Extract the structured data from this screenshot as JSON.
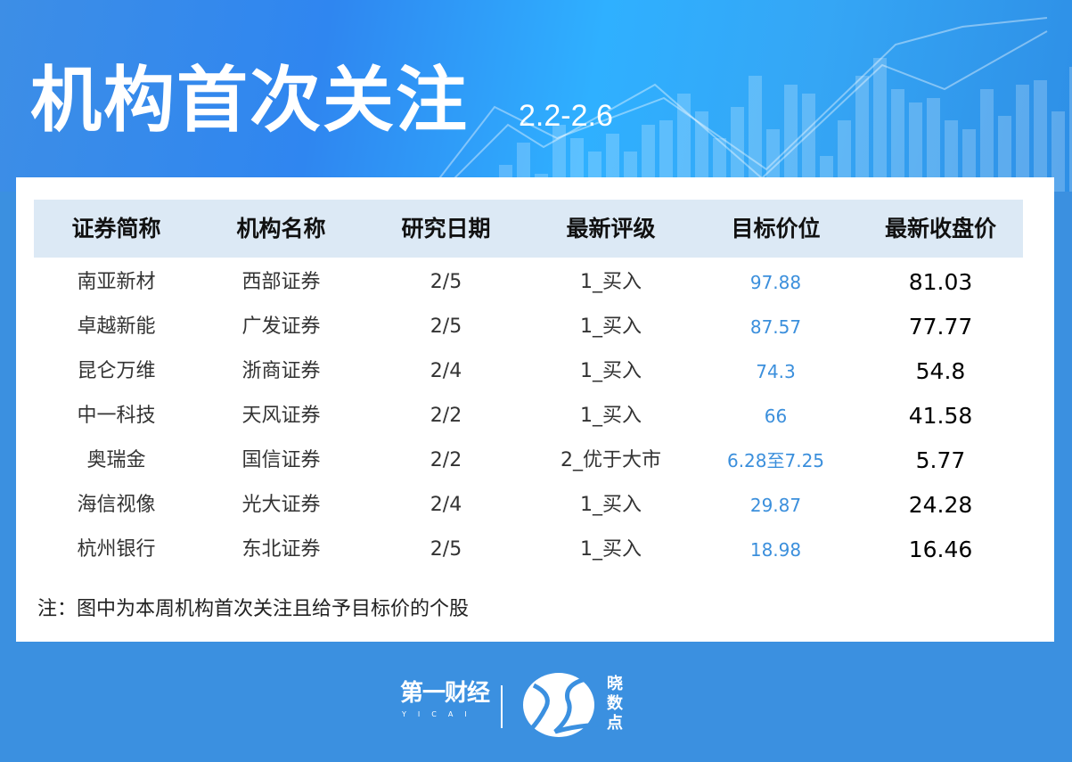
{
  "header": {
    "title": "机构首次关注",
    "date_range": "2.2-2.6"
  },
  "table": {
    "columns": [
      "证券简称",
      "机构名称",
      "研究日期",
      "最新评级",
      "目标价位",
      "最新收盘价"
    ],
    "rows": [
      [
        "南亚新材",
        "西部证券",
        "2/5",
        "1_买入",
        "97.88",
        "81.03"
      ],
      [
        "卓越新能",
        "广发证券",
        "2/5",
        "1_买入",
        "87.57",
        "77.77"
      ],
      [
        "昆仑万维",
        "浙商证券",
        "2/4",
        "1_买入",
        "74.3",
        "54.8"
      ],
      [
        "中一科技",
        "天风证券",
        "2/2",
        "1_买入",
        "66",
        "41.58"
      ],
      [
        "奥瑞金",
        "国信证券",
        "2/2",
        "2_优于大市",
        "6.28至7.25",
        "5.77"
      ],
      [
        "海信视像",
        "光大证券",
        "2/4",
        "1_买入",
        "29.87",
        "24.28"
      ],
      [
        "杭州银行",
        "东北证券",
        "2/5",
        "1_买入",
        "18.98",
        "16.46"
      ]
    ]
  },
  "note": "注：图中为本周机构首次关注且给予目标价的个股",
  "footer": {
    "brand1": "第一财经",
    "brand1_sub": "YICAI",
    "brand2": "晓数点"
  },
  "colors": {
    "background": "#3b90e0",
    "header_row": "#dce9f5",
    "target_price": "#3b8fdc"
  }
}
